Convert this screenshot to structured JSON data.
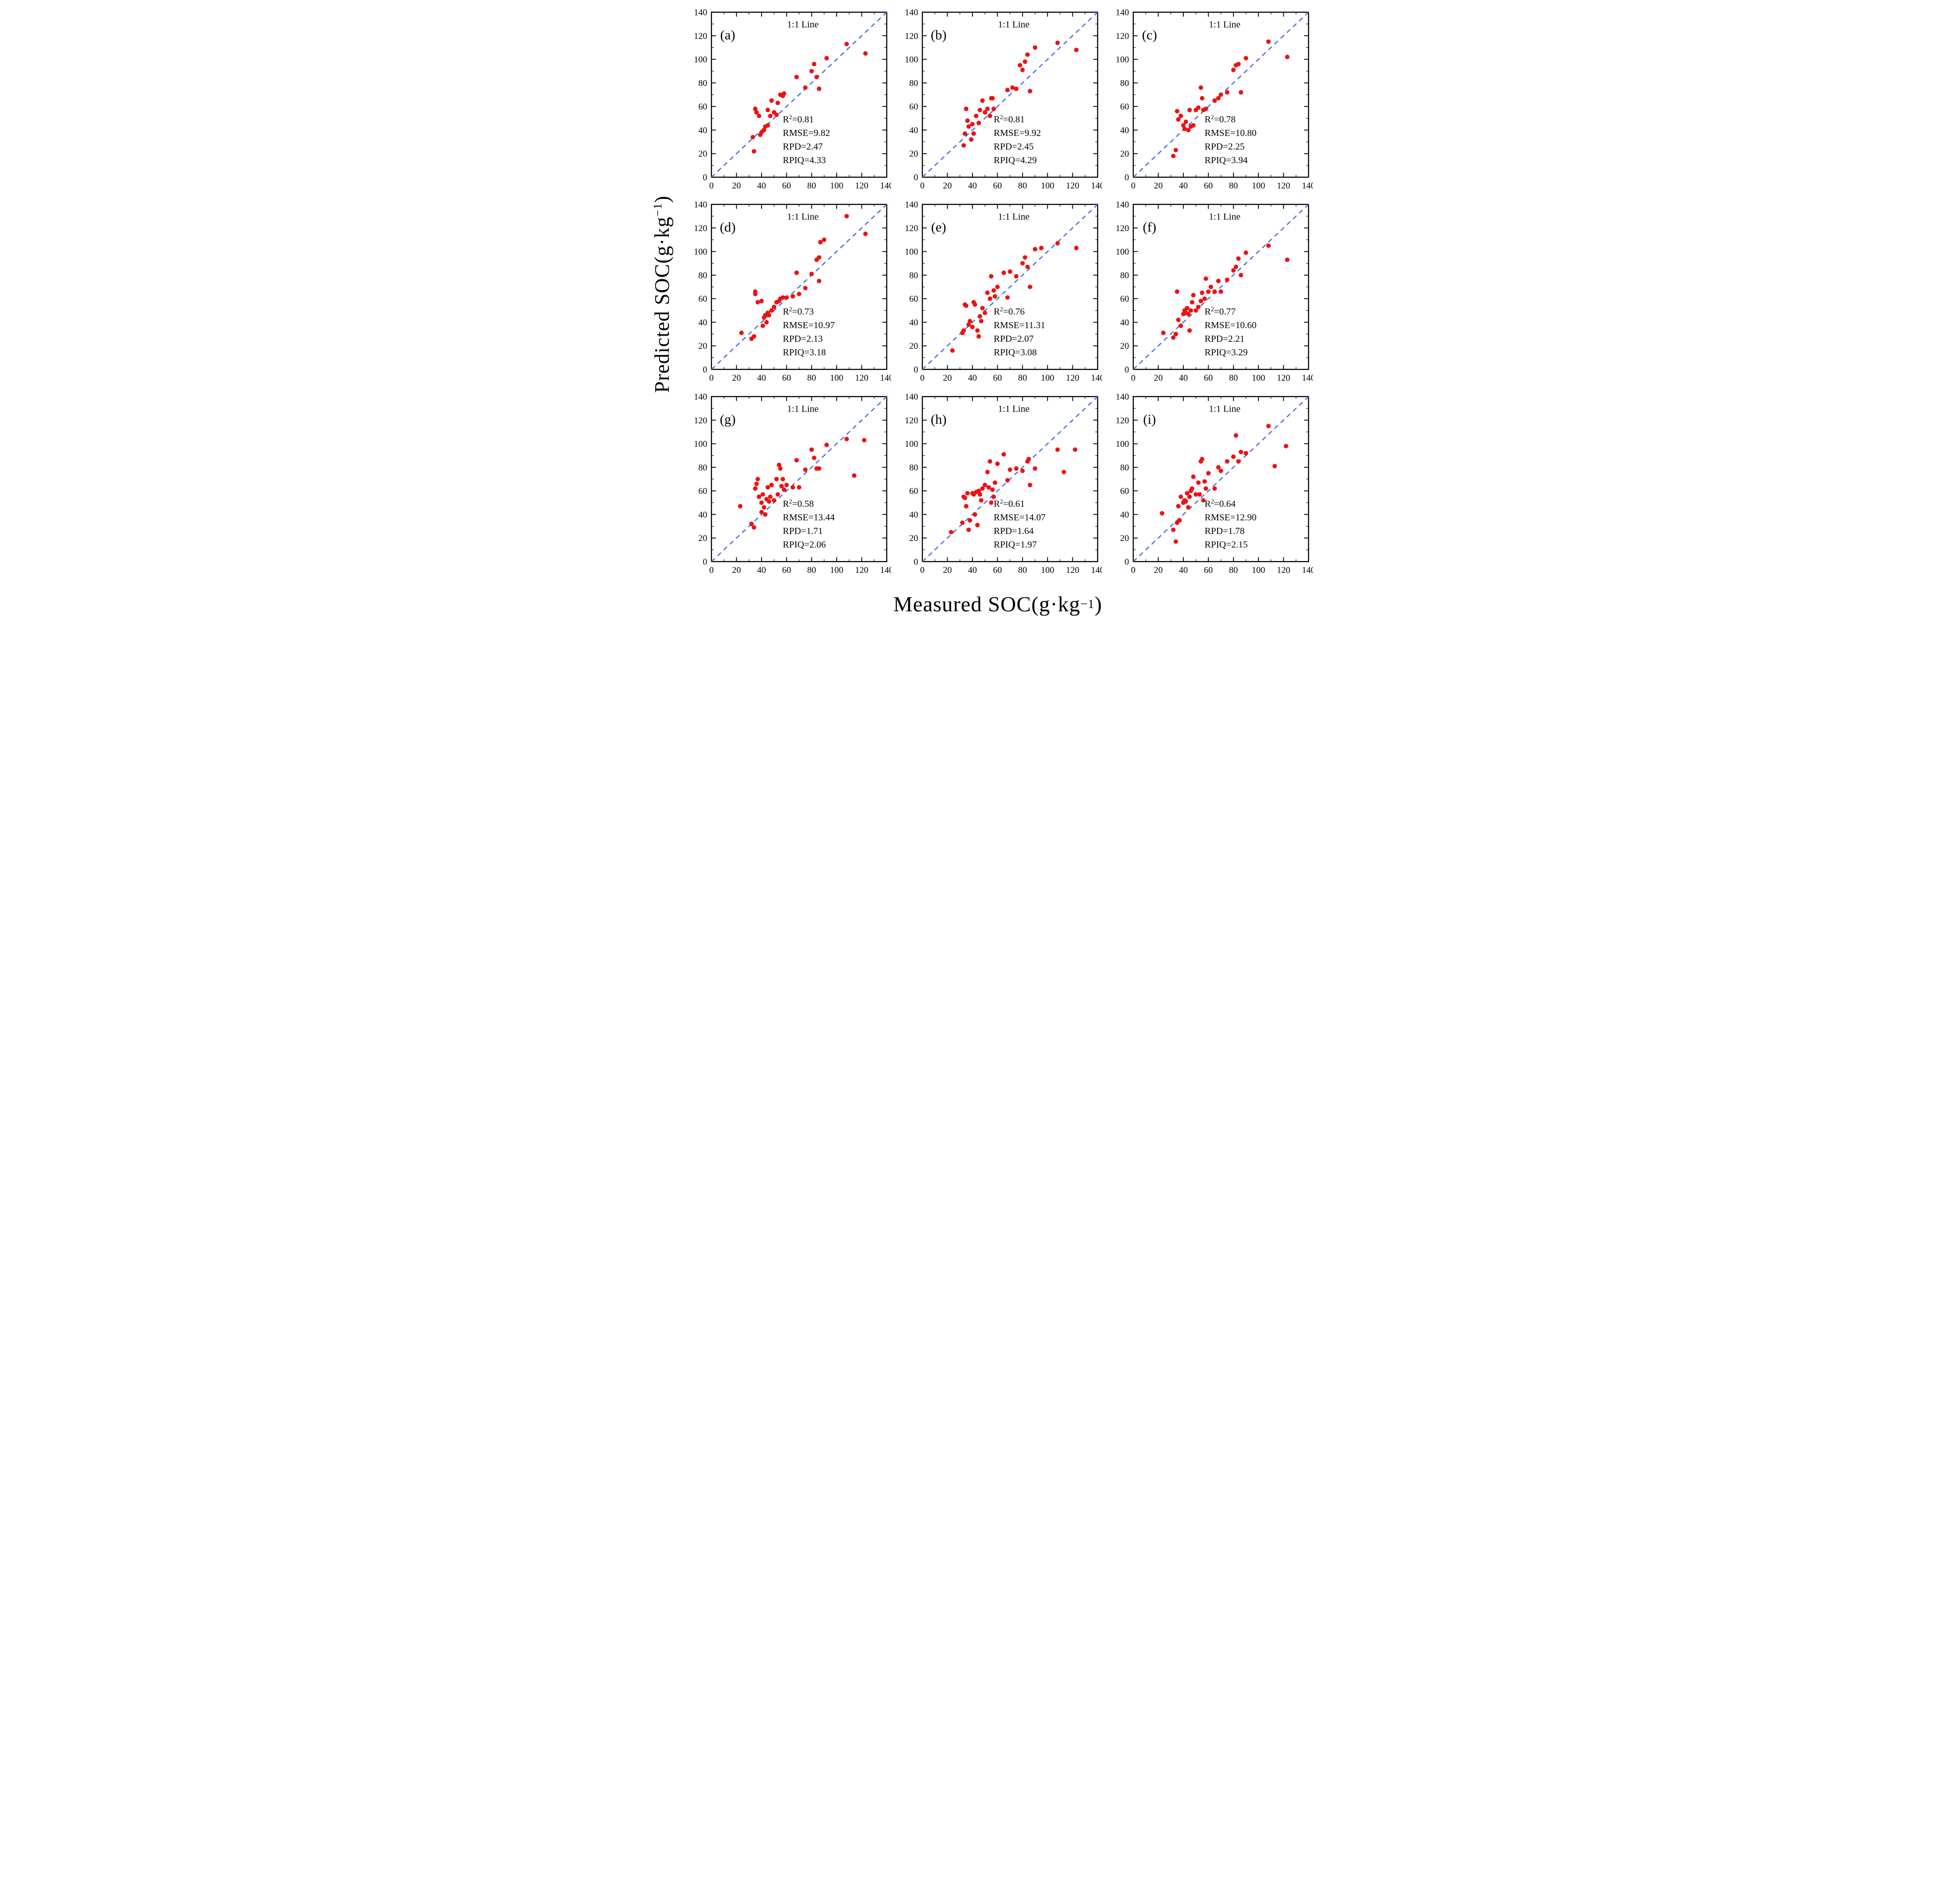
{
  "labels": {
    "x_prefix": "Measured SOC(g·kg",
    "x_sup": "−1",
    "x_suffix": ")",
    "y_prefix": "Predicted SOC(g·kg",
    "y_sup": "−1",
    "y_suffix": ")"
  },
  "chart_data": {
    "type": "scatter",
    "grid": [
      3,
      3
    ],
    "xlabel": "Measured SOC(g·kg−1)",
    "ylabel": "Predicted SOC(g·kg−1)",
    "xlim": [
      0,
      140
    ],
    "ylim": [
      0,
      140
    ],
    "major_ticks": [
      0,
      20,
      40,
      60,
      80,
      100,
      120,
      140
    ],
    "minor_tick_step": 10,
    "grid_lines": false,
    "point_color": "#ee1111",
    "reference_line": {
      "label": "1:1 Line",
      "from": [
        0,
        0
      ],
      "to": [
        140,
        140
      ],
      "style": "dashed",
      "color": "#4a6fdc"
    },
    "stat_labels": {
      "r2_base": "R",
      "r2_sup": "2",
      "rmse": "RMSE",
      "rpd": "RPD",
      "rpiq": "RPIQ"
    },
    "panels": [
      {
        "letter": "(a)",
        "stats": {
          "R2": "0.81",
          "RMSE": "9.82",
          "RPD": "2.47",
          "RPIQ": "4.33"
        },
        "points": [
          [
            33,
            34
          ],
          [
            34,
            22
          ],
          [
            35,
            58
          ],
          [
            36,
            55
          ],
          [
            38,
            52
          ],
          [
            39,
            36
          ],
          [
            40,
            38
          ],
          [
            42,
            40
          ],
          [
            43,
            43
          ],
          [
            45,
            44
          ],
          [
            45,
            57
          ],
          [
            47,
            52
          ],
          [
            48,
            65
          ],
          [
            50,
            55
          ],
          [
            52,
            53
          ],
          [
            53,
            63
          ],
          [
            55,
            70
          ],
          [
            57,
            69
          ],
          [
            58,
            71
          ],
          [
            68,
            85
          ],
          [
            75,
            76
          ],
          [
            80,
            90
          ],
          [
            82,
            96
          ],
          [
            84,
            85
          ],
          [
            86,
            75
          ],
          [
            92,
            101
          ],
          [
            108,
            113
          ],
          [
            123,
            105
          ]
        ]
      },
      {
        "letter": "(b)",
        "stats": {
          "R2": "0.81",
          "RMSE": "9.92",
          "RPD": "2.45",
          "RPIQ": "4.29"
        },
        "points": [
          [
            33,
            27
          ],
          [
            34,
            37
          ],
          [
            35,
            58
          ],
          [
            36,
            48
          ],
          [
            37,
            43
          ],
          [
            39,
            32
          ],
          [
            40,
            45
          ],
          [
            41,
            37
          ],
          [
            43,
            52
          ],
          [
            45,
            46
          ],
          [
            46,
            57
          ],
          [
            48,
            65
          ],
          [
            50,
            55
          ],
          [
            52,
            58
          ],
          [
            54,
            52
          ],
          [
            55,
            67
          ],
          [
            56,
            67
          ],
          [
            57,
            58
          ],
          [
            68,
            74
          ],
          [
            72,
            76
          ],
          [
            75,
            75
          ],
          [
            78,
            95
          ],
          [
            80,
            91
          ],
          [
            82,
            98
          ],
          [
            84,
            104
          ],
          [
            86,
            73
          ],
          [
            90,
            110
          ],
          [
            108,
            114
          ],
          [
            123,
            108
          ]
        ]
      },
      {
        "letter": "(c)",
        "stats": {
          "R2": "0.78",
          "RMSE": "10.80",
          "RPD": "2.25",
          "RPIQ": "3.94"
        },
        "points": [
          [
            32,
            18
          ],
          [
            34,
            23
          ],
          [
            35,
            56
          ],
          [
            36,
            49
          ],
          [
            38,
            52
          ],
          [
            40,
            44
          ],
          [
            41,
            41
          ],
          [
            42,
            47
          ],
          [
            44,
            40
          ],
          [
            45,
            57
          ],
          [
            46,
            43
          ],
          [
            48,
            44
          ],
          [
            50,
            57
          ],
          [
            52,
            59
          ],
          [
            54,
            76
          ],
          [
            55,
            67
          ],
          [
            56,
            57
          ],
          [
            58,
            58
          ],
          [
            65,
            65
          ],
          [
            68,
            67
          ],
          [
            70,
            70
          ],
          [
            75,
            72
          ],
          [
            80,
            91
          ],
          [
            82,
            95
          ],
          [
            84,
            96
          ],
          [
            86,
            72
          ],
          [
            90,
            101
          ],
          [
            108,
            115
          ],
          [
            123,
            102
          ]
        ]
      },
      {
        "letter": "(d)",
        "stats": {
          "R2": "0.73",
          "RMSE": "10.97",
          "RPD": "2.13",
          "RPIQ": "3.18"
        },
        "points": [
          [
            24,
            31
          ],
          [
            32,
            26
          ],
          [
            34,
            28
          ],
          [
            35,
            66
          ],
          [
            35,
            64
          ],
          [
            37,
            57
          ],
          [
            40,
            58
          ],
          [
            41,
            37
          ],
          [
            42,
            44
          ],
          [
            43,
            46
          ],
          [
            44,
            40
          ],
          [
            45,
            48
          ],
          [
            46,
            46
          ],
          [
            48,
            50
          ],
          [
            50,
            53
          ],
          [
            52,
            57
          ],
          [
            54,
            58
          ],
          [
            55,
            60
          ],
          [
            57,
            61
          ],
          [
            60,
            61
          ],
          [
            65,
            62
          ],
          [
            68,
            82
          ],
          [
            70,
            64
          ],
          [
            75,
            69
          ],
          [
            80,
            81
          ],
          [
            84,
            93
          ],
          [
            86,
            95
          ],
          [
            86,
            75
          ],
          [
            87,
            108
          ],
          [
            90,
            110
          ],
          [
            108,
            130
          ],
          [
            123,
            115
          ]
        ]
      },
      {
        "letter": "(e)",
        "stats": {
          "R2": "0.76",
          "RMSE": "11.31",
          "RPD": "2.07",
          "RPIQ": "3.08"
        },
        "points": [
          [
            24,
            16
          ],
          [
            32,
            31
          ],
          [
            33,
            33
          ],
          [
            34,
            55
          ],
          [
            35,
            54
          ],
          [
            37,
            38
          ],
          [
            38,
            41
          ],
          [
            40,
            36
          ],
          [
            41,
            57
          ],
          [
            42,
            55
          ],
          [
            44,
            33
          ],
          [
            45,
            28
          ],
          [
            46,
            45
          ],
          [
            47,
            41
          ],
          [
            48,
            52
          ],
          [
            50,
            48
          ],
          [
            52,
            65
          ],
          [
            54,
            60
          ],
          [
            55,
            79
          ],
          [
            57,
            67
          ],
          [
            58,
            62
          ],
          [
            60,
            70
          ],
          [
            65,
            82
          ],
          [
            68,
            61
          ],
          [
            70,
            83
          ],
          [
            75,
            79
          ],
          [
            80,
            90
          ],
          [
            82,
            95
          ],
          [
            84,
            87
          ],
          [
            86,
            70
          ],
          [
            90,
            102
          ],
          [
            95,
            103
          ],
          [
            108,
            107
          ],
          [
            123,
            103
          ]
        ]
      },
      {
        "letter": "(f)",
        "stats": {
          "R2": "0.77",
          "RMSE": "10.60",
          "RPD": "2.21",
          "RPIQ": "3.29"
        },
        "points": [
          [
            24,
            31
          ],
          [
            32,
            27
          ],
          [
            34,
            30
          ],
          [
            35,
            66
          ],
          [
            36,
            42
          ],
          [
            38,
            37
          ],
          [
            40,
            47
          ],
          [
            41,
            50
          ],
          [
            42,
            48
          ],
          [
            43,
            52
          ],
          [
            44,
            47
          ],
          [
            45,
            33
          ],
          [
            46,
            50
          ],
          [
            47,
            57
          ],
          [
            48,
            63
          ],
          [
            50,
            50
          ],
          [
            52,
            53
          ],
          [
            54,
            58
          ],
          [
            55,
            65
          ],
          [
            57,
            60
          ],
          [
            58,
            77
          ],
          [
            60,
            66
          ],
          [
            62,
            70
          ],
          [
            65,
            66
          ],
          [
            68,
            75
          ],
          [
            70,
            66
          ],
          [
            75,
            76
          ],
          [
            80,
            84
          ],
          [
            82,
            87
          ],
          [
            84,
            94
          ],
          [
            86,
            80
          ],
          [
            90,
            99
          ],
          [
            108,
            105
          ],
          [
            123,
            93
          ]
        ]
      },
      {
        "letter": "(g)",
        "stats": {
          "R2": "0.58",
          "RMSE": "13.44",
          "RPD": "1.71",
          "RPIQ": "2.06"
        },
        "points": [
          [
            23,
            47
          ],
          [
            32,
            32
          ],
          [
            34,
            29
          ],
          [
            35,
            62
          ],
          [
            36,
            66
          ],
          [
            37,
            70
          ],
          [
            38,
            55
          ],
          [
            40,
            50
          ],
          [
            40,
            42
          ],
          [
            41,
            57
          ],
          [
            42,
            46
          ],
          [
            43,
            40
          ],
          [
            44,
            53
          ],
          [
            45,
            63
          ],
          [
            46,
            51
          ],
          [
            47,
            55
          ],
          [
            48,
            65
          ],
          [
            50,
            52
          ],
          [
            52,
            70
          ],
          [
            53,
            57
          ],
          [
            54,
            82
          ],
          [
            55,
            79
          ],
          [
            56,
            64
          ],
          [
            57,
            70
          ],
          [
            58,
            61
          ],
          [
            60,
            65
          ],
          [
            65,
            63
          ],
          [
            68,
            86
          ],
          [
            70,
            63
          ],
          [
            75,
            78
          ],
          [
            80,
            95
          ],
          [
            82,
            88
          ],
          [
            84,
            79
          ],
          [
            86,
            79
          ],
          [
            92,
            99
          ],
          [
            108,
            104
          ],
          [
            114,
            73
          ],
          [
            122,
            103
          ]
        ]
      },
      {
        "letter": "(h)",
        "stats": {
          "R2": "0.61",
          "RMSE": "14.07",
          "RPD": "1.64",
          "RPIQ": "1.97"
        },
        "points": [
          [
            23,
            25
          ],
          [
            32,
            33
          ],
          [
            33,
            55
          ],
          [
            34,
            54
          ],
          [
            35,
            47
          ],
          [
            36,
            58
          ],
          [
            37,
            27
          ],
          [
            38,
            35
          ],
          [
            40,
            58
          ],
          [
            41,
            57
          ],
          [
            42,
            40
          ],
          [
            43,
            59
          ],
          [
            44,
            31
          ],
          [
            45,
            60
          ],
          [
            46,
            57
          ],
          [
            47,
            52
          ],
          [
            48,
            62
          ],
          [
            50,
            65
          ],
          [
            52,
            76
          ],
          [
            53,
            63
          ],
          [
            54,
            85
          ],
          [
            55,
            50
          ],
          [
            56,
            61
          ],
          [
            57,
            55
          ],
          [
            58,
            67
          ],
          [
            60,
            83
          ],
          [
            65,
            91
          ],
          [
            68,
            69
          ],
          [
            70,
            78
          ],
          [
            75,
            79
          ],
          [
            80,
            77
          ],
          [
            84,
            85
          ],
          [
            85,
            87
          ],
          [
            86,
            65
          ],
          [
            90,
            79
          ],
          [
            108,
            95
          ],
          [
            113,
            76
          ],
          [
            122,
            95
          ]
        ]
      },
      {
        "letter": "(i)",
        "stats": {
          "R2": "0.64",
          "RMSE": "12.90",
          "RPD": "1.78",
          "RPIQ": "2.15"
        },
        "points": [
          [
            23,
            41
          ],
          [
            32,
            27
          ],
          [
            34,
            17
          ],
          [
            35,
            33
          ],
          [
            36,
            47
          ],
          [
            37,
            35
          ],
          [
            38,
            55
          ],
          [
            40,
            50
          ],
          [
            41,
            52
          ],
          [
            42,
            51
          ],
          [
            43,
            58
          ],
          [
            44,
            46
          ],
          [
            45,
            55
          ],
          [
            46,
            60
          ],
          [
            47,
            62
          ],
          [
            48,
            72
          ],
          [
            50,
            57
          ],
          [
            52,
            67
          ],
          [
            53,
            57
          ],
          [
            54,
            85
          ],
          [
            55,
            87
          ],
          [
            56,
            52
          ],
          [
            57,
            68
          ],
          [
            58,
            62
          ],
          [
            60,
            75
          ],
          [
            65,
            62
          ],
          [
            68,
            80
          ],
          [
            70,
            77
          ],
          [
            75,
            85
          ],
          [
            80,
            89
          ],
          [
            82,
            107
          ],
          [
            84,
            85
          ],
          [
            86,
            93
          ],
          [
            90,
            92
          ],
          [
            108,
            115
          ],
          [
            113,
            81
          ],
          [
            122,
            98
          ]
        ]
      }
    ]
  }
}
